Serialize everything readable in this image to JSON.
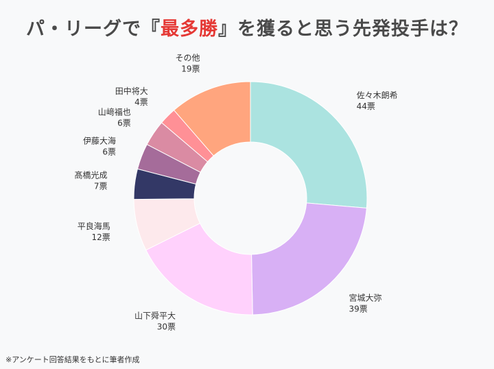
{
  "title": {
    "prefix": "パ・リーグで『",
    "highlight": "最多勝",
    "suffix": "』を獲ると思う先発投手は？"
  },
  "footnote": "※アンケート回答結果をもとに筆者作成",
  "chart_data": {
    "type": "pie",
    "donut": true,
    "title": "パ・リーグで『最多勝』を獲ると思う先発投手は？",
    "slices": [
      {
        "name": "佐々木朗希",
        "value": 44,
        "label": "44票",
        "color": "#abe3e0"
      },
      {
        "name": "宮城大弥",
        "value": 39,
        "label": "39票",
        "color": "#d8b0f5"
      },
      {
        "name": "山下舜平大",
        "value": 30,
        "label": "30票",
        "color": "#ffd1fc"
      },
      {
        "name": "平良海馬",
        "value": 12,
        "label": "12票",
        "color": "#fde9ec"
      },
      {
        "name": "髙橋光成",
        "value": 7,
        "label": "7票",
        "color": "#333866"
      },
      {
        "name": "伊藤大海",
        "value": 6,
        "label": "6票",
        "color": "#a56c9a"
      },
      {
        "name": "山﨑福也",
        "value": 6,
        "label": "6票",
        "color": "#da8ba3"
      },
      {
        "name": "田中将大",
        "value": 4,
        "label": "4票",
        "color": "#ff9096"
      },
      {
        "name": "その他",
        "value": 19,
        "label": "19票",
        "color": "#ffa57e"
      }
    ]
  }
}
